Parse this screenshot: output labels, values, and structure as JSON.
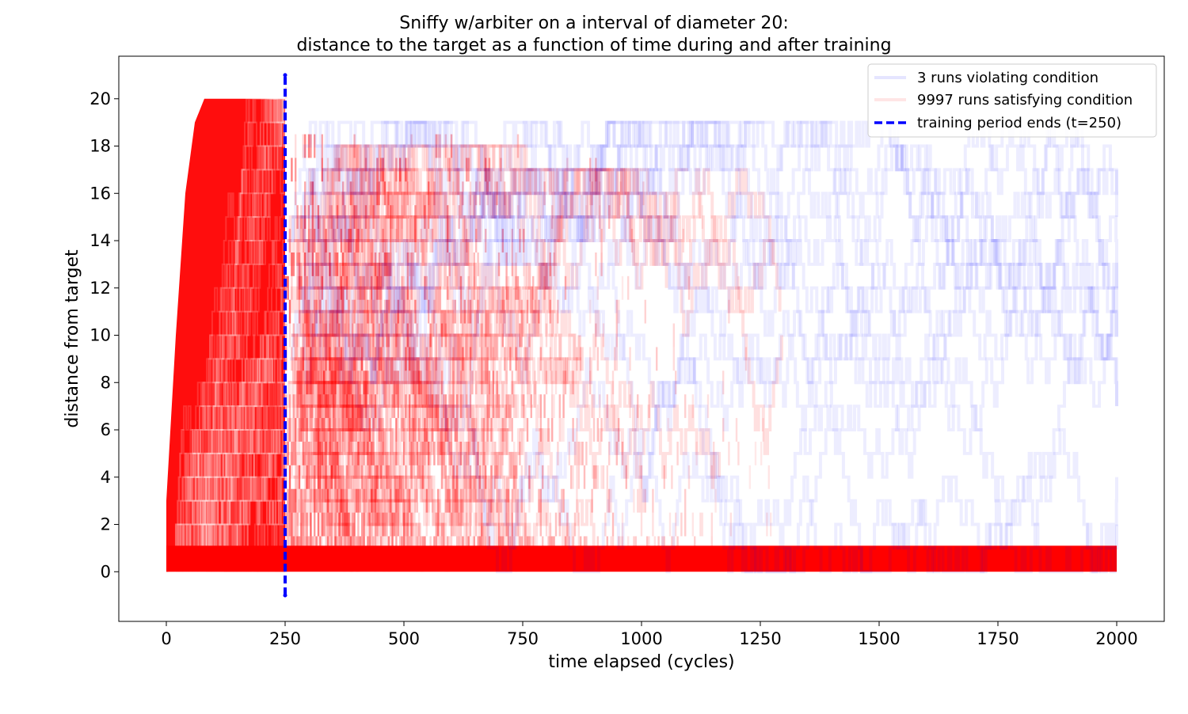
{
  "chart_data": {
    "type": "line",
    "title_line1": "Sniffy w/arbiter on a interval of diameter 20:",
    "title_line2": "distance to the target as a function of time during and after training",
    "xlabel": "time elapsed (cycles)",
    "ylabel": "distance from target",
    "xlim": [
      -100,
      2100
    ],
    "ylim": [
      -2.1,
      21.8
    ],
    "x_ticks": [
      0,
      250,
      500,
      750,
      1000,
      1250,
      1500,
      1750,
      2000
    ],
    "x_tick_labels": [
      "0",
      "250",
      "500",
      "750",
      "1000",
      "1250",
      "1500",
      "1750",
      "2000"
    ],
    "y_ticks": [
      0,
      2,
      4,
      6,
      8,
      10,
      12,
      14,
      16,
      18,
      20
    ],
    "y_tick_labels": [
      "0",
      "2",
      "4",
      "6",
      "8",
      "10",
      "12",
      "14",
      "16",
      "18",
      "20"
    ],
    "grid": false,
    "legend_position": "top-right",
    "legend": [
      {
        "label": "3 runs violating condition",
        "color": "#0000ff",
        "style": "solid-faint"
      },
      {
        "label": "9997 runs satisfying condition",
        "color": "#ff0000",
        "style": "solid-faint"
      },
      {
        "label": "training period ends (t=250)",
        "color": "#0000ff",
        "style": "dashed"
      }
    ],
    "series": [
      {
        "name": "9997 runs satisfying condition",
        "color": "#ff0000",
        "summary": "during training distances rise from 0 up to a max of 20; after t=250 most runs drop to and stay at 0-1 through t=2000, with a decaying band of excursions up to about 19",
        "envelope_x": [
          0,
          20,
          40,
          60,
          80,
          250,
          300,
          500,
          750,
          1000,
          1250,
          1320,
          2000
        ],
        "envelope_max": [
          3,
          10,
          16,
          19,
          20,
          20,
          18,
          19,
          18,
          17,
          17,
          8,
          1
        ],
        "baseline_band": [
          0,
          1
        ]
      },
      {
        "name": "3 runs violating condition",
        "color": "#0000ff",
        "summary": "three runs wander between roughly 0 and 19 through the whole post-training period up to t=2000",
        "runs_count": 3
      }
    ],
    "vline": {
      "x": 250,
      "y_range": [
        -1,
        21
      ],
      "color": "#0000ff",
      "style": "dashed",
      "label": "training period ends (t=250)"
    }
  }
}
